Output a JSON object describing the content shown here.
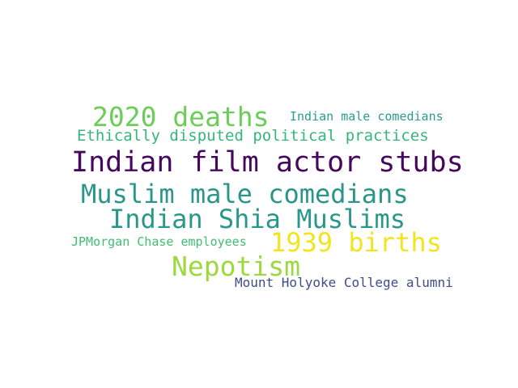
{
  "word_cloud": {
    "words": [
      {
        "text": "2020 deaths",
        "color": "#6ccd5a"
      },
      {
        "text": "Indian male comedians",
        "color": "#2a9d8c"
      },
      {
        "text": "Ethically disputed political practices",
        "color": "#35b779"
      },
      {
        "text": "Indian film actor stubs",
        "color": "#46085c"
      },
      {
        "text": "Muslim male comedians",
        "color": "#2a968b"
      },
      {
        "text": "Indian Shia Muslims",
        "color": "#2a9889"
      },
      {
        "text": "JPMorgan Chase employees",
        "color": "#40bd72"
      },
      {
        "text": "1939 births",
        "color": "#f1e51d"
      },
      {
        "text": "Nepotism",
        "color": "#9bd93c"
      },
      {
        "text": "Mount Holyoke College alumni",
        "color": "#3d4d8a"
      }
    ]
  }
}
